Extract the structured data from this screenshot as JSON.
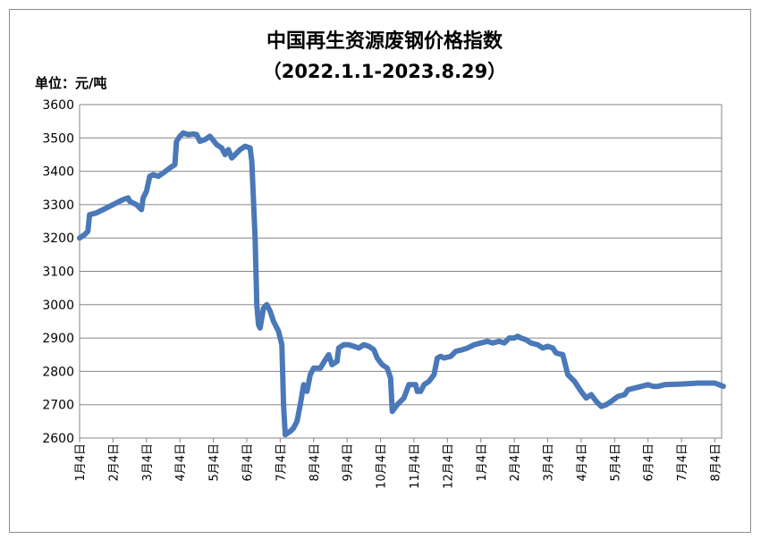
{
  "chart_data": {
    "type": "line",
    "title": "中国再生资源废钢价格指数",
    "subtitle": "（2022.1.1-2023.8.29）",
    "ylabel": "单位：元/吨",
    "ylim": [
      2600,
      3600
    ],
    "yticks": [
      3600,
      3500,
      3400,
      3300,
      3200,
      3100,
      3000,
      2900,
      2800,
      2700,
      2600
    ],
    "grid": true,
    "line_color": "#4a78b8",
    "categories": [
      "1月4日",
      "2月4日",
      "3月4日",
      "4月4日",
      "5月4日",
      "6月4日",
      "7月4日",
      "8月4日",
      "9月4日",
      "10月4日",
      "11月4日",
      "12月4日",
      "1月4日",
      "2月4日",
      "3月4日",
      "4月4日",
      "5月4日",
      "6月4日",
      "7月4日",
      "8月4日"
    ],
    "series": [
      {
        "values": [
          [
            0,
            3200
          ],
          [
            0.15,
            3210
          ],
          [
            0.25,
            3220
          ],
          [
            0.3,
            3270
          ],
          [
            0.5,
            3275
          ],
          [
            0.7,
            3285
          ],
          [
            0.9,
            3295
          ],
          [
            1.1,
            3305
          ],
          [
            1.3,
            3315
          ],
          [
            1.45,
            3320
          ],
          [
            1.5,
            3310
          ],
          [
            1.7,
            3300
          ],
          [
            1.85,
            3285
          ],
          [
            1.9,
            3320
          ],
          [
            2.0,
            3340
          ],
          [
            2.1,
            3385
          ],
          [
            2.2,
            3390
          ],
          [
            2.35,
            3385
          ],
          [
            2.5,
            3395
          ],
          [
            2.7,
            3410
          ],
          [
            2.85,
            3420
          ],
          [
            2.9,
            3490
          ],
          [
            3.0,
            3505
          ],
          [
            3.1,
            3515
          ],
          [
            3.25,
            3510
          ],
          [
            3.4,
            3512
          ],
          [
            3.5,
            3510
          ],
          [
            3.6,
            3490
          ],
          [
            3.75,
            3495
          ],
          [
            3.9,
            3505
          ],
          [
            4.1,
            3480
          ],
          [
            4.25,
            3470
          ],
          [
            4.35,
            3450
          ],
          [
            4.45,
            3465
          ],
          [
            4.55,
            3440
          ],
          [
            4.7,
            3455
          ],
          [
            4.8,
            3465
          ],
          [
            4.95,
            3475
          ],
          [
            5.1,
            3470
          ],
          [
            5.15,
            3430
          ],
          [
            5.25,
            3200
          ],
          [
            5.3,
            3000
          ],
          [
            5.35,
            2940
          ],
          [
            5.4,
            2930
          ],
          [
            5.5,
            2990
          ],
          [
            5.6,
            3000
          ],
          [
            5.7,
            2980
          ],
          [
            5.8,
            2950
          ],
          [
            5.95,
            2920
          ],
          [
            6.05,
            2880
          ],
          [
            6.1,
            2700
          ],
          [
            6.15,
            2610
          ],
          [
            6.3,
            2620
          ],
          [
            6.4,
            2630
          ],
          [
            6.5,
            2650
          ],
          [
            6.6,
            2700
          ],
          [
            6.7,
            2760
          ],
          [
            6.8,
            2740
          ],
          [
            6.9,
            2790
          ],
          [
            7.0,
            2810
          ],
          [
            7.2,
            2810
          ],
          [
            7.35,
            2835
          ],
          [
            7.45,
            2850
          ],
          [
            7.55,
            2820
          ],
          [
            7.7,
            2830
          ],
          [
            7.75,
            2870
          ],
          [
            7.9,
            2880
          ],
          [
            8.05,
            2880
          ],
          [
            8.2,
            2875
          ],
          [
            8.35,
            2870
          ],
          [
            8.5,
            2880
          ],
          [
            8.65,
            2875
          ],
          [
            8.8,
            2865
          ],
          [
            8.9,
            2840
          ],
          [
            9.05,
            2820
          ],
          [
            9.2,
            2810
          ],
          [
            9.3,
            2780
          ],
          [
            9.35,
            2680
          ],
          [
            9.5,
            2700
          ],
          [
            9.7,
            2720
          ],
          [
            9.85,
            2760
          ],
          [
            10.05,
            2760
          ],
          [
            10.1,
            2740
          ],
          [
            10.2,
            2740
          ],
          [
            10.3,
            2760
          ],
          [
            10.45,
            2770
          ],
          [
            10.6,
            2790
          ],
          [
            10.7,
            2840
          ],
          [
            10.8,
            2845
          ],
          [
            10.9,
            2840
          ],
          [
            11.1,
            2845
          ],
          [
            11.25,
            2860
          ],
          [
            11.45,
            2865
          ],
          [
            11.6,
            2870
          ],
          [
            11.8,
            2880
          ],
          [
            12.0,
            2885
          ],
          [
            12.2,
            2890
          ],
          [
            12.35,
            2885
          ],
          [
            12.55,
            2890
          ],
          [
            12.7,
            2885
          ],
          [
            12.85,
            2900
          ],
          [
            13.0,
            2900
          ],
          [
            13.1,
            2905
          ],
          [
            13.2,
            2900
          ],
          [
            13.35,
            2895
          ],
          [
            13.5,
            2885
          ],
          [
            13.7,
            2880
          ],
          [
            13.85,
            2870
          ],
          [
            14.0,
            2875
          ],
          [
            14.15,
            2870
          ],
          [
            14.25,
            2855
          ],
          [
            14.45,
            2850
          ],
          [
            14.6,
            2790
          ],
          [
            14.8,
            2770
          ],
          [
            15.0,
            2740
          ],
          [
            15.15,
            2720
          ],
          [
            15.3,
            2730
          ],
          [
            15.45,
            2710
          ],
          [
            15.6,
            2695
          ],
          [
            15.75,
            2700
          ],
          [
            15.9,
            2710
          ],
          [
            16.1,
            2725
          ],
          [
            16.3,
            2730
          ],
          [
            16.4,
            2745
          ],
          [
            16.6,
            2750
          ],
          [
            16.8,
            2755
          ],
          [
            17.0,
            2760
          ],
          [
            17.15,
            2755
          ],
          [
            17.3,
            2755
          ],
          [
            17.5,
            2760
          ],
          [
            18.0,
            2762
          ],
          [
            18.5,
            2765
          ],
          [
            19.0,
            2765
          ],
          [
            19.25,
            2755
          ]
        ]
      }
    ]
  }
}
